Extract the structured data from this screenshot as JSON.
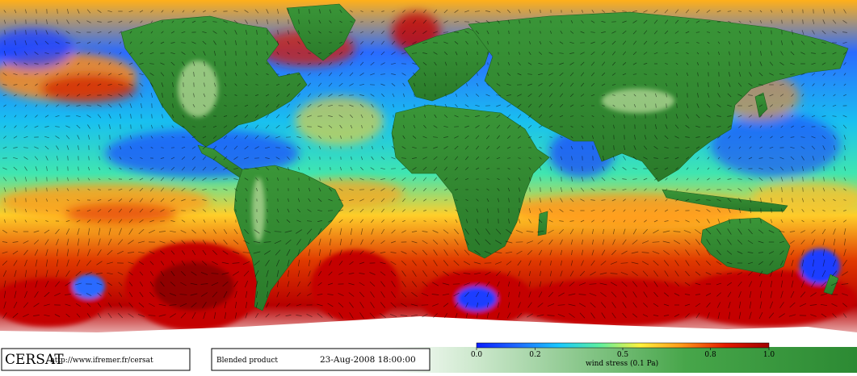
{
  "footer": {
    "logo_text": "CERSAT",
    "url": "http://www.ifremer.fr/cersat",
    "product": "Blended product",
    "datetime": "23-Aug-2008 18:00:00"
  },
  "colorbar": {
    "stops": [
      "#0a1eff",
      "#1f6bff",
      "#18c8ff",
      "#5cf0a0",
      "#fff23c",
      "#ff9a1a",
      "#e61a00",
      "#a10000"
    ],
    "ticks": [
      "0.0",
      "0.2",
      "0.5",
      "0.8",
      "1.0"
    ],
    "label": "wind stress (0.1 Pa)"
  },
  "colors": {
    "land_dark": "#2c7a2c",
    "land_mid": "#3e9b3a",
    "ice": "#ffffff",
    "ocean_calm": "#1a40ff",
    "ocean_strong": "#c40000"
  },
  "icons": [
    "wind-arrow-icon"
  ]
}
